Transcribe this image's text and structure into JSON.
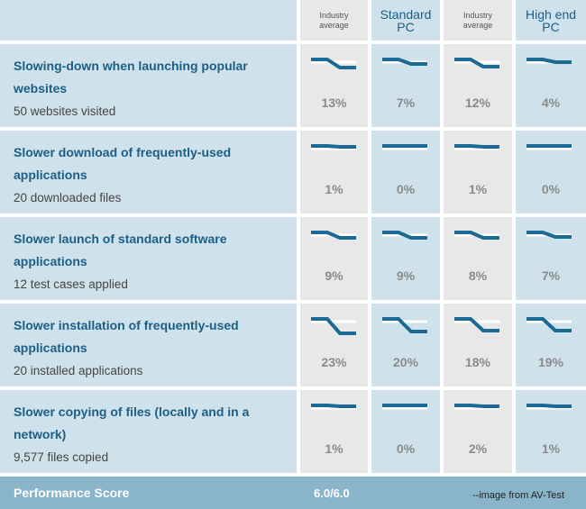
{
  "header": {
    "columns": [
      {
        "text": "Industry\naverage",
        "style": "small"
      },
      {
        "text": "Standard\nPC",
        "style": "big"
      },
      {
        "text": "Industry\naverage",
        "style": "small"
      },
      {
        "text": "High end\nPC",
        "style": "big"
      }
    ]
  },
  "rows": [
    {
      "title": "Slowing-down when launching popular websites",
      "subtitle": "50 websites visited",
      "values": [
        "13%",
        "7%",
        "12%",
        "4%"
      ],
      "slowdown": [
        0.13,
        0.07,
        0.12,
        0.04
      ]
    },
    {
      "title": "Slower download of frequently-used applications",
      "subtitle": "20 downloaded files",
      "values": [
        "1%",
        "0%",
        "1%",
        "0%"
      ],
      "slowdown": [
        0.01,
        0.0,
        0.01,
        0.0
      ]
    },
    {
      "title": "Slower launch of standard software applications",
      "subtitle": "12 test cases applied",
      "values": [
        "9%",
        "9%",
        "8%",
        "7%"
      ],
      "slowdown": [
        0.09,
        0.09,
        0.08,
        0.07
      ]
    },
    {
      "title": "Slower installation of frequently-used applications",
      "subtitle": "20 installed applications",
      "values": [
        "23%",
        "20%",
        "18%",
        "19%"
      ],
      "slowdown": [
        0.23,
        0.2,
        0.18,
        0.19
      ]
    },
    {
      "title": "Slower copying of files (locally and in a network)",
      "subtitle": "9,577 files copied",
      "values": [
        "1%",
        "0%",
        "2%",
        "1%"
      ],
      "slowdown": [
        0.01,
        0.0,
        0.02,
        0.01
      ]
    }
  ],
  "footer": {
    "label": "Performance Score",
    "score": "6.0/6.0",
    "credit": "--image from AV-Test"
  },
  "colors": {
    "line": "#1b6a96",
    "baseline": "#ffffff",
    "label_bg": "#cfe2ec",
    "industry_bg": "#e8e8e8",
    "footer_bg": "#8ab4c9"
  }
}
